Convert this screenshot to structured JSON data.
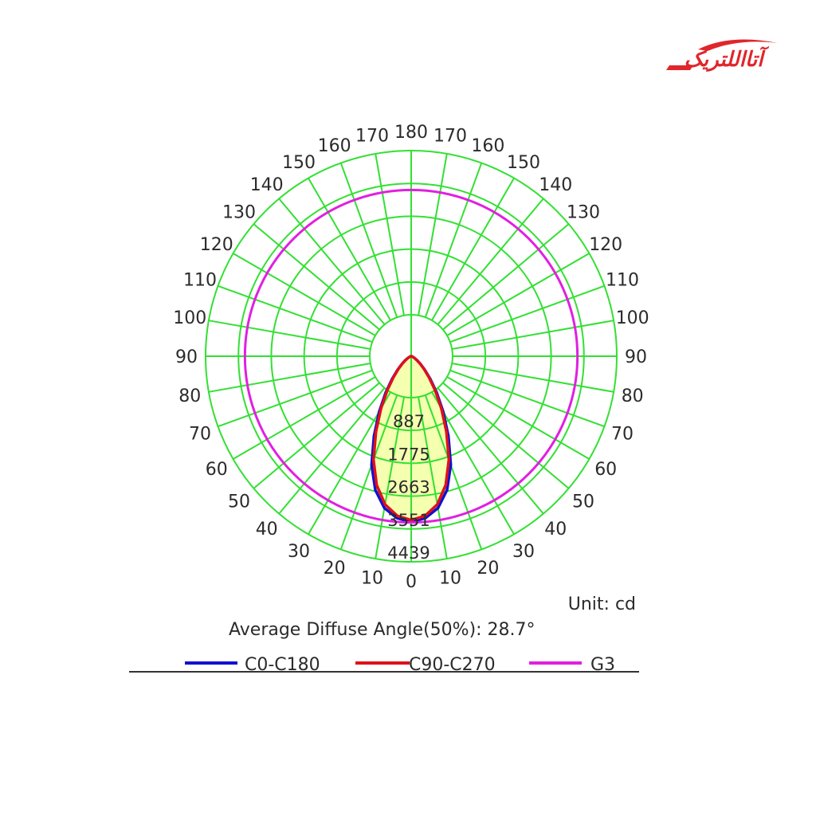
{
  "brand": {
    "logo_text": "آتااللتریک",
    "color": "#e0262b"
  },
  "chart_data": {
    "type": "polar",
    "unit_label": "Unit: cd",
    "average_angle_label": "Average Diffuse Angle(50%): 28.7°",
    "angle_labels_left": [
      "0",
      "10",
      "20",
      "30",
      "40",
      "50",
      "60",
      "70",
      "80",
      "90",
      "100",
      "110",
      "120",
      "130",
      "140",
      "150",
      "160",
      "170",
      "180"
    ],
    "angle_labels_right": [
      "10",
      "20",
      "30",
      "40",
      "50",
      "60",
      "70",
      "80",
      "90",
      "100",
      "110",
      "120",
      "130",
      "140",
      "150",
      "160",
      "170"
    ],
    "radial_ticks": [
      887,
      1775,
      2663,
      3551,
      4439
    ],
    "radial_tick_labels": [
      "887",
      "1775",
      "2663",
      "3551",
      "4439"
    ],
    "rmax": 4439,
    "grid_color": "#33e033",
    "series": [
      {
        "name": "C0-C180",
        "color": "#1010d0",
        "angles_deg": [
          0,
          5,
          10,
          15,
          20,
          25,
          30,
          35,
          40,
          45,
          50,
          55,
          60,
          65,
          70,
          75,
          80,
          85,
          90
        ],
        "values": [
          3580,
          3510,
          3330,
          2990,
          2500,
          1900,
          1380,
          960,
          640,
          410,
          260,
          160,
          95,
          55,
          30,
          15,
          8,
          3,
          0
        ]
      },
      {
        "name": "C90-C270",
        "color": "#e0101a",
        "angles_deg": [
          0,
          5,
          10,
          15,
          20,
          25,
          30,
          35,
          40,
          45,
          50,
          55,
          60,
          65,
          70,
          75,
          80,
          85,
          90
        ],
        "values": [
          3540,
          3460,
          3250,
          2880,
          2380,
          1800,
          1300,
          900,
          600,
          390,
          250,
          150,
          90,
          50,
          28,
          14,
          7,
          3,
          0
        ]
      },
      {
        "name": "G3",
        "color": "#e020e0",
        "shape": "circle",
        "value": 3590
      }
    ]
  }
}
